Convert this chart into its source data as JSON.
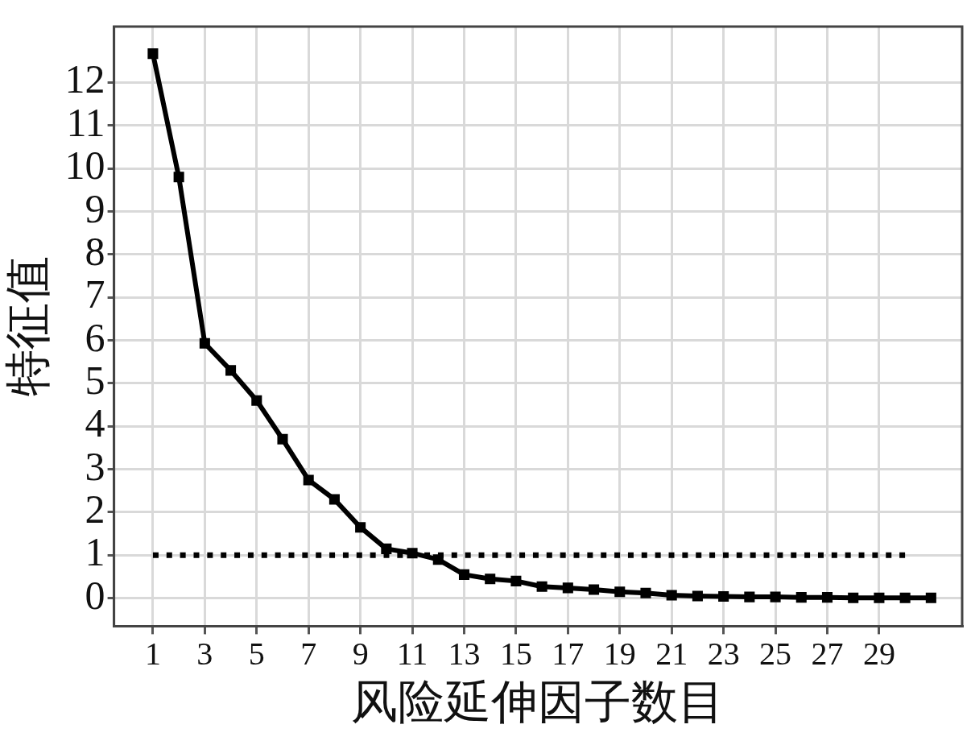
{
  "chart_data": {
    "type": "line",
    "xlabel": "风险延伸因子数目",
    "ylabel": "特征值",
    "x": [
      1,
      2,
      3,
      4,
      5,
      6,
      7,
      8,
      9,
      10,
      11,
      12,
      13,
      14,
      15,
      16,
      17,
      18,
      19,
      20,
      21,
      22,
      23,
      24,
      25,
      26,
      27,
      28,
      29,
      30,
      31
    ],
    "series": [
      {
        "color": "#000000",
        "marker": "square",
        "line_style": "solid",
        "values": [
          12.67,
          9.8,
          5.93,
          5.3,
          4.6,
          3.7,
          2.75,
          2.3,
          1.65,
          1.15,
          1.05,
          0.9,
          0.55,
          0.45,
          0.4,
          0.27,
          0.24,
          0.2,
          0.15,
          0.12,
          0.07,
          0.05,
          0.04,
          0.03,
          0.03,
          0.02,
          0.02,
          0.01,
          0.01,
          0.01,
          0.01
        ]
      },
      {
        "color": "#000000",
        "marker": "none",
        "line_style": "dotted",
        "x": [
          1,
          30
        ],
        "values": [
          1,
          1
        ]
      }
    ],
    "xlim": [
      -0.5,
      32.2
    ],
    "ylim": [
      -0.65,
      13.3
    ],
    "xticks": [
      1,
      3,
      5,
      7,
      9,
      11,
      13,
      15,
      17,
      19,
      21,
      23,
      25,
      27,
      29
    ],
    "yticks": [
      0,
      1,
      2,
      3,
      4,
      5,
      6,
      7,
      8,
      9,
      10,
      11,
      12
    ],
    "grid": true,
    "legend": false
  }
}
